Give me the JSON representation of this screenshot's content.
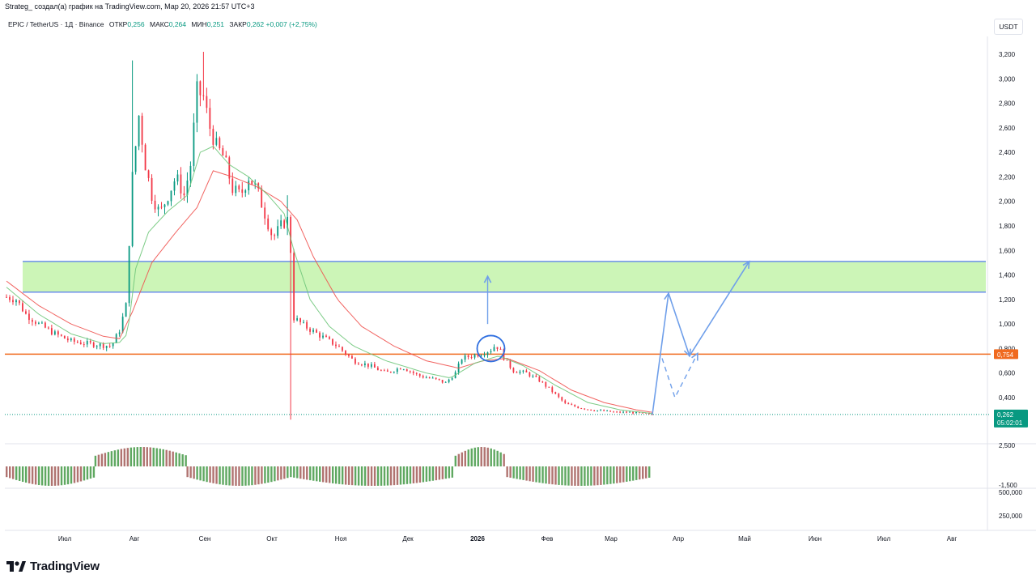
{
  "header": {
    "caption": "Strateg_ создал(а) график на TradingView.com, Мар 20, 2026 21:57 UTC+3"
  },
  "legend": {
    "symbol": "EPIC / TetherUS · 1Д · Binance",
    "open_label": "ОТКР",
    "open": "0,256",
    "high_label": "МАКС",
    "high": "0,264",
    "low_label": "МИН",
    "low": "0,251",
    "close_label": "ЗАКР",
    "close": "0,262",
    "change": "+0,007 (+2,75%)"
  },
  "currency_button": "USDT",
  "logo": {
    "text": "TradingView"
  },
  "colors": {
    "up": "#089981",
    "down": "#f23645",
    "ema_fast": "#6fc77a",
    "ema_slow": "#ef5350",
    "zone_fill": "#ccf5b7",
    "zone_border": "#6b8fe8",
    "level": "#f06a1f",
    "arrow": "#6f9fea",
    "osc_up": "#5fa861",
    "osc_down": "#b07370"
  },
  "chart_data": {
    "type": "candlestick",
    "price_axis_labels": [
      "3,200",
      "3,000",
      "2,800",
      "2,600",
      "2,400",
      "2,200",
      "2,000",
      "1,800",
      "1,600",
      "1,400",
      "1,200",
      "1,000",
      "0,800",
      "0,600",
      "0,400"
    ],
    "time_axis_labels": [
      "Июл",
      "Авг",
      "Сен",
      "Окт",
      "Ноя",
      "Дек",
      "2026",
      "Фев",
      "Мар",
      "Апр",
      "Май",
      "Июн",
      "Июл",
      "Авг"
    ],
    "ylim": [
      0.2,
      3.35
    ],
    "price_points": [
      [
        0,
        1.22
      ],
      [
        6,
        1.2
      ],
      [
        12,
        1.08
      ],
      [
        20,
        1.0
      ],
      [
        30,
        0.92
      ],
      [
        40,
        0.86
      ],
      [
        50,
        0.84
      ],
      [
        58,
        0.83
      ],
      [
        65,
        0.82
      ],
      [
        70,
        0.95
      ],
      [
        74,
        1.15
      ],
      [
        78,
        2.2
      ],
      [
        82,
        2.7
      ],
      [
        86,
        2.3
      ],
      [
        90,
        2.05
      ],
      [
        95,
        1.9
      ],
      [
        100,
        2.05
      ],
      [
        105,
        2.2
      ],
      [
        110,
        2.05
      ],
      [
        114,
        2.3
      ],
      [
        118,
        2.9
      ],
      [
        122,
        2.85
      ],
      [
        126,
        2.6
      ],
      [
        130,
        2.45
      ],
      [
        135,
        2.35
      ],
      [
        140,
        2.1
      ],
      [
        145,
        2.05
      ],
      [
        150,
        2.2
      ],
      [
        155,
        2.1
      ],
      [
        160,
        1.9
      ],
      [
        165,
        1.7
      ],
      [
        170,
        1.8
      ],
      [
        174,
        1.85
      ],
      [
        176,
        1.6
      ],
      [
        178,
        1.05
      ],
      [
        185,
        0.98
      ],
      [
        195,
        0.9
      ],
      [
        205,
        0.82
      ],
      [
        215,
        0.7
      ],
      [
        225,
        0.66
      ],
      [
        235,
        0.6
      ],
      [
        245,
        0.65
      ],
      [
        255,
        0.58
      ],
      [
        265,
        0.55
      ],
      [
        272,
        0.52
      ],
      [
        278,
        0.6
      ],
      [
        282,
        0.72
      ],
      [
        288,
        0.74
      ],
      [
        294,
        0.76
      ],
      [
        300,
        0.79
      ],
      [
        303,
        0.83
      ],
      [
        306,
        0.78
      ],
      [
        309,
        0.7
      ],
      [
        314,
        0.62
      ],
      [
        322,
        0.6
      ],
      [
        330,
        0.54
      ],
      [
        338,
        0.45
      ],
      [
        346,
        0.35
      ],
      [
        354,
        0.32
      ],
      [
        362,
        0.3
      ],
      [
        370,
        0.29
      ],
      [
        378,
        0.28
      ],
      [
        386,
        0.28
      ],
      [
        394,
        0.27
      ],
      [
        400,
        0.262
      ]
    ],
    "ema_fast_points": [
      [
        0,
        1.3
      ],
      [
        20,
        1.08
      ],
      [
        40,
        0.92
      ],
      [
        60,
        0.84
      ],
      [
        70,
        0.85
      ],
      [
        75,
        0.92
      ],
      [
        80,
        1.45
      ],
      [
        88,
        1.75
      ],
      [
        100,
        1.92
      ],
      [
        112,
        2.05
      ],
      [
        120,
        2.4
      ],
      [
        128,
        2.45
      ],
      [
        138,
        2.3
      ],
      [
        150,
        2.2
      ],
      [
        162,
        2.05
      ],
      [
        172,
        1.9
      ],
      [
        178,
        1.6
      ],
      [
        188,
        1.2
      ],
      [
        200,
        0.98
      ],
      [
        215,
        0.82
      ],
      [
        235,
        0.7
      ],
      [
        260,
        0.6
      ],
      [
        275,
        0.56
      ],
      [
        290,
        0.68
      ],
      [
        305,
        0.74
      ],
      [
        320,
        0.66
      ],
      [
        340,
        0.5
      ],
      [
        360,
        0.36
      ],
      [
        380,
        0.3
      ],
      [
        400,
        0.27
      ]
    ],
    "ema_slow_points": [
      [
        0,
        1.35
      ],
      [
        20,
        1.15
      ],
      [
        40,
        1.0
      ],
      [
        60,
        0.9
      ],
      [
        70,
        0.88
      ],
      [
        78,
        1.1
      ],
      [
        90,
        1.5
      ],
      [
        105,
        1.75
      ],
      [
        118,
        1.95
      ],
      [
        128,
        2.25
      ],
      [
        140,
        2.2
      ],
      [
        155,
        2.12
      ],
      [
        170,
        2.0
      ],
      [
        180,
        1.85
      ],
      [
        190,
        1.55
      ],
      [
        205,
        1.2
      ],
      [
        220,
        0.98
      ],
      [
        240,
        0.82
      ],
      [
        260,
        0.7
      ],
      [
        280,
        0.64
      ],
      [
        295,
        0.7
      ],
      [
        310,
        0.72
      ],
      [
        330,
        0.62
      ],
      [
        350,
        0.46
      ],
      [
        370,
        0.36
      ],
      [
        390,
        0.3
      ],
      [
        400,
        0.28
      ]
    ],
    "osc_segments": [
      {
        "from": 0,
        "to": 55,
        "val": -1,
        "color": "#b07370"
      },
      {
        "from": 55,
        "to": 112,
        "val": 1,
        "color": "#b07370"
      },
      {
        "from": 112,
        "to": 176,
        "val": -1,
        "color": "#5fa861"
      },
      {
        "from": 176,
        "to": 278,
        "val": -1,
        "color": "#5fa861"
      },
      {
        "from": 278,
        "to": 310,
        "val": 1,
        "color": "#5fa861"
      },
      {
        "from": 310,
        "to": 400,
        "val": -1,
        "color": "#5fa861"
      }
    ],
    "osc_axis_labels": [
      "2,500",
      "-1,500"
    ],
    "volume_axis_labels": [
      "500,000",
      "250,000"
    ],
    "zone": {
      "low": 1.26,
      "high": 1.51
    },
    "level_value": 0.754,
    "level_label": "0,754",
    "price_label": "0,262",
    "countdown": "05:02:01",
    "projection": [
      [
        400,
        0.262
      ],
      [
        410,
        1.25
      ],
      [
        423,
        0.74
      ],
      [
        460,
        1.51
      ]
    ],
    "projection_alt": [
      [
        406,
        0.72
      ],
      [
        414,
        0.4
      ],
      [
        428,
        0.76
      ]
    ],
    "arrow_up": {
      "x": 298,
      "from": 1.0,
      "to": 1.39
    },
    "circle": {
      "x": 298,
      "y": 0.8
    }
  }
}
